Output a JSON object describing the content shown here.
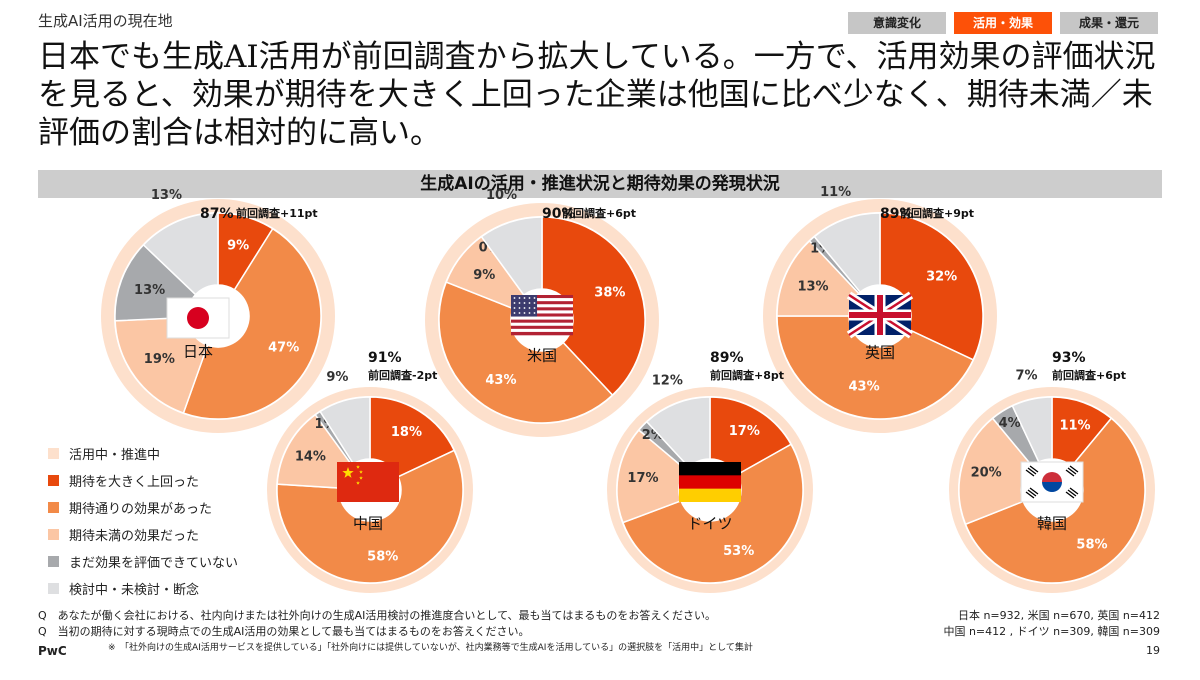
{
  "header": {
    "section_label": "生成AI活用の現在地",
    "tags": [
      "意識変化",
      "活用・効果",
      "成果・還元"
    ],
    "active_tag_index": 1
  },
  "headline": "日本でも生成AI活用が前回調査から拡大している。一方で、活用効果の評価状況を見ると、効果が期待を大きく上回った企業は他国に比べ少なく、期待未満／未評価の割合は相対的に高い。",
  "chart_data": {
    "type": "pie",
    "title": "生成AIの活用・推進状況と期待効果の発現状況",
    "series_names": [
      "活用中・推進中",
      "期待を大きく上回った",
      "期待通りの効果があった",
      "期待未満の効果だった",
      "まだ効果を評価できていない",
      "検討中・未検討・断念"
    ],
    "colors": {
      "outer": "#fde0cc",
      "exceeded": "#e8490d",
      "met": "#f28a48",
      "below": "#fbc6a4",
      "not_evaluated": "#a7a9ac",
      "considering": "#dedfe1"
    },
    "countries": [
      {
        "name": "日本",
        "flag": "jp",
        "usage_pct": "87%",
        "prev_diff": "前回調査+11pt",
        "exceeded": 9,
        "met": 47,
        "below": 19,
        "not_evaluated": 13,
        "considering": 13,
        "labels": [
          "9%",
          "47%",
          "19%",
          "13%",
          "13%"
        ]
      },
      {
        "name": "米国",
        "flag": "us",
        "usage_pct": "90%",
        "prev_diff": "前回調査+6pt",
        "exceeded": 38,
        "met": 43,
        "below": 9,
        "not_evaluated": 0,
        "considering": 10,
        "labels": [
          "38%",
          "43%",
          "9%",
          "0%",
          "10%"
        ]
      },
      {
        "name": "英国",
        "flag": "uk",
        "usage_pct": "89%",
        "prev_diff": "前回調査+9pt",
        "exceeded": 32,
        "met": 43,
        "below": 13,
        "not_evaluated": 1,
        "considering": 11,
        "labels": [
          "32%",
          "43%",
          "13%",
          "1%",
          "11%"
        ]
      },
      {
        "name": "中国",
        "flag": "cn",
        "usage_pct": "91%",
        "prev_diff": "前回調査-2pt",
        "exceeded": 18,
        "met": 58,
        "below": 14,
        "not_evaluated": 1,
        "considering": 9,
        "labels": [
          "18%",
          "58%",
          "14%",
          "1%",
          "9%"
        ]
      },
      {
        "name": "ドイツ",
        "flag": "de",
        "usage_pct": "89%",
        "prev_diff": "前回調査+8pt",
        "exceeded": 17,
        "met": 53,
        "below": 17,
        "not_evaluated": 2,
        "considering": 12,
        "labels": [
          "17%",
          "53%",
          "17%",
          "2%",
          "12%"
        ]
      },
      {
        "name": "韓国",
        "flag": "kr",
        "usage_pct": "93%",
        "prev_diff": "前回調査+6pt",
        "exceeded": 11,
        "met": 58,
        "below": 20,
        "not_evaluated": 4,
        "considering": 7,
        "labels": [
          "11%",
          "58%",
          "20%",
          "4%",
          "7%"
        ]
      }
    ]
  },
  "legend": [
    {
      "label": "活用中・推進中",
      "color": "#fde0cc"
    },
    {
      "label": "期待を大きく上回った",
      "color": "#e8490d"
    },
    {
      "label": "期待通りの効果があった",
      "color": "#f28a48"
    },
    {
      "label": "期待未満の効果だった",
      "color": "#fbc6a4"
    },
    {
      "label": "まだ効果を評価できていない",
      "color": "#a7a9ac"
    },
    {
      "label": "検討中・未検討・断念",
      "color": "#dedfe1"
    }
  ],
  "footnotes": {
    "q1": "Q　あなたが働く会社における、社内向けまたは社外向けの生成AI活用検討の推進度合いとして、最も当てはまるものをお答えください。",
    "q2": "Q　当初の期待に対する現時点での生成AI活用の効果として最も当てはまるものをお答えください。",
    "note": "※　「社外向けの生成AI活用サービスを提供している」「社外向けには提供していないが、社内業務等で生成AIを活用している」の選択肢を「活用中」として集計"
  },
  "samples": {
    "line1": "日本 n=932, 米国 n=670, 英国 n=412",
    "line2": "中国 n=412 , ドイツ n=309, 韓国 n=309"
  },
  "footer": {
    "brand": "PwC",
    "page": "19"
  }
}
